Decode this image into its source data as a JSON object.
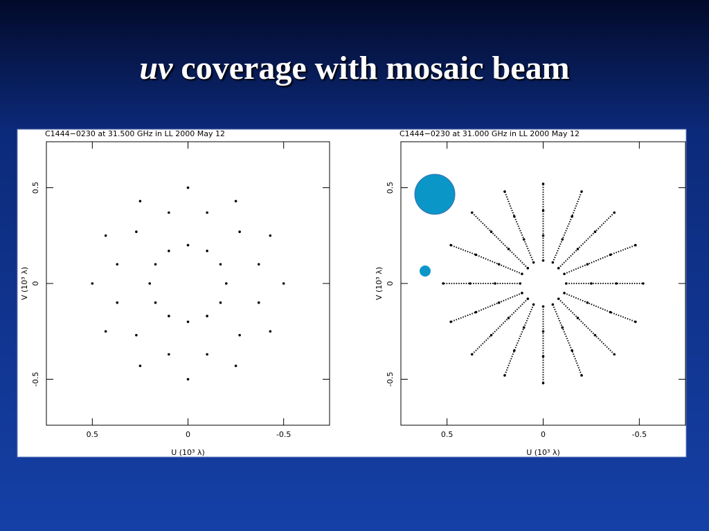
{
  "slide_title": {
    "italic": "uv",
    "text": "coverage with mosaic beam"
  },
  "chart_data": [
    {
      "type": "scatter",
      "title": "C1444−0230 at 31.500 GHz in LL  2000 May 12",
      "xlabel": "U (10³ λ)",
      "ylabel": "V (10³ λ)",
      "xlim": [
        0.74,
        -0.74
      ],
      "ylim": [
        -0.74,
        0.74
      ],
      "xticks": [
        0.5,
        0,
        -0.5
      ],
      "yticks": [
        -0.5,
        0,
        0.5
      ],
      "color": "#000000",
      "x": [
        0.2,
        0.17,
        0.1,
        0,
        -0.1,
        -0.17,
        -0.2,
        -0.17,
        -0.1,
        0,
        0.1,
        0.17,
        0.37,
        0.27,
        0.1,
        -0.1,
        -0.27,
        -0.37,
        -0.37,
        -0.27,
        -0.1,
        0.1,
        0.27,
        0.37,
        0.5,
        0.43,
        0.25,
        0,
        -0.25,
        -0.43,
        -0.5,
        -0.43,
        -0.25,
        0,
        0.25,
        0.43
      ],
      "y": [
        0,
        0.1,
        0.17,
        0.2,
        0.17,
        0.1,
        0,
        -0.1,
        -0.17,
        -0.2,
        -0.17,
        -0.1,
        0.1,
        0.27,
        0.37,
        0.37,
        0.27,
        0.1,
        -0.1,
        -0.27,
        -0.37,
        -0.37,
        -0.27,
        -0.1,
        0,
        0.25,
        0.43,
        0.5,
        0.43,
        0.25,
        0,
        -0.25,
        -0.43,
        -0.5,
        -0.43,
        -0.25
      ]
    },
    {
      "type": "scatter",
      "title": "C1444−0230 at 31.000 GHz in LL  2000 May 12",
      "xlabel": "U (10³ λ)",
      "ylabel": "V (10³ λ)",
      "xlim": [
        0.74,
        -0.74
      ],
      "ylim": [
        -0.74,
        0.74
      ],
      "xticks": [
        0.5,
        0,
        -0.5
      ],
      "yticks": [
        -0.5,
        0,
        0.5
      ],
      "color": "#000000",
      "series": [
        {
          "x": [
            0.12,
            0.25,
            0.38,
            0.52
          ],
          "y": [
            0,
            0,
            0,
            0
          ]
        },
        {
          "x": [
            0.11,
            0.23,
            0.35,
            0.48
          ],
          "y": [
            0.05,
            0.1,
            0.15,
            0.2
          ]
        },
        {
          "x": [
            0.08,
            0.18,
            0.27,
            0.37
          ],
          "y": [
            0.08,
            0.18,
            0.27,
            0.37
          ]
        },
        {
          "x": [
            0.05,
            0.1,
            0.15,
            0.2
          ],
          "y": [
            0.11,
            0.23,
            0.35,
            0.48
          ]
        },
        {
          "x": [
            0,
            0,
            0,
            0
          ],
          "y": [
            0.12,
            0.25,
            0.38,
            0.52
          ]
        },
        {
          "x": [
            -0.05,
            -0.1,
            -0.15,
            -0.2
          ],
          "y": [
            0.11,
            0.23,
            0.35,
            0.48
          ]
        },
        {
          "x": [
            -0.08,
            -0.18,
            -0.27,
            -0.37
          ],
          "y": [
            0.08,
            0.18,
            0.27,
            0.37
          ]
        },
        {
          "x": [
            -0.11,
            -0.23,
            -0.35,
            -0.48
          ],
          "y": [
            0.05,
            0.1,
            0.15,
            0.2
          ]
        },
        {
          "x": [
            -0.12,
            -0.25,
            -0.38,
            -0.52
          ],
          "y": [
            0,
            0,
            0,
            0
          ]
        },
        {
          "x": [
            -0.11,
            -0.23,
            -0.35,
            -0.48
          ],
          "y": [
            -0.05,
            -0.1,
            -0.15,
            -0.2
          ]
        },
        {
          "x": [
            -0.08,
            -0.18,
            -0.27,
            -0.37
          ],
          "y": [
            -0.08,
            -0.18,
            -0.27,
            -0.37
          ]
        },
        {
          "x": [
            -0.05,
            -0.1,
            -0.15,
            -0.2
          ],
          "y": [
            -0.11,
            -0.23,
            -0.35,
            -0.48
          ]
        },
        {
          "x": [
            0,
            0,
            0,
            0
          ],
          "y": [
            -0.12,
            -0.25,
            -0.38,
            -0.52
          ]
        },
        {
          "x": [
            0.05,
            0.1,
            0.15,
            0.2
          ],
          "y": [
            -0.11,
            -0.23,
            -0.35,
            -0.48
          ]
        },
        {
          "x": [
            0.08,
            0.18,
            0.27,
            0.37
          ],
          "y": [
            -0.08,
            -0.18,
            -0.27,
            -0.37
          ]
        },
        {
          "x": [
            0.11,
            0.23,
            0.35,
            0.48
          ],
          "y": [
            -0.05,
            -0.1,
            -0.15,
            -0.2
          ]
        }
      ]
    }
  ]
}
